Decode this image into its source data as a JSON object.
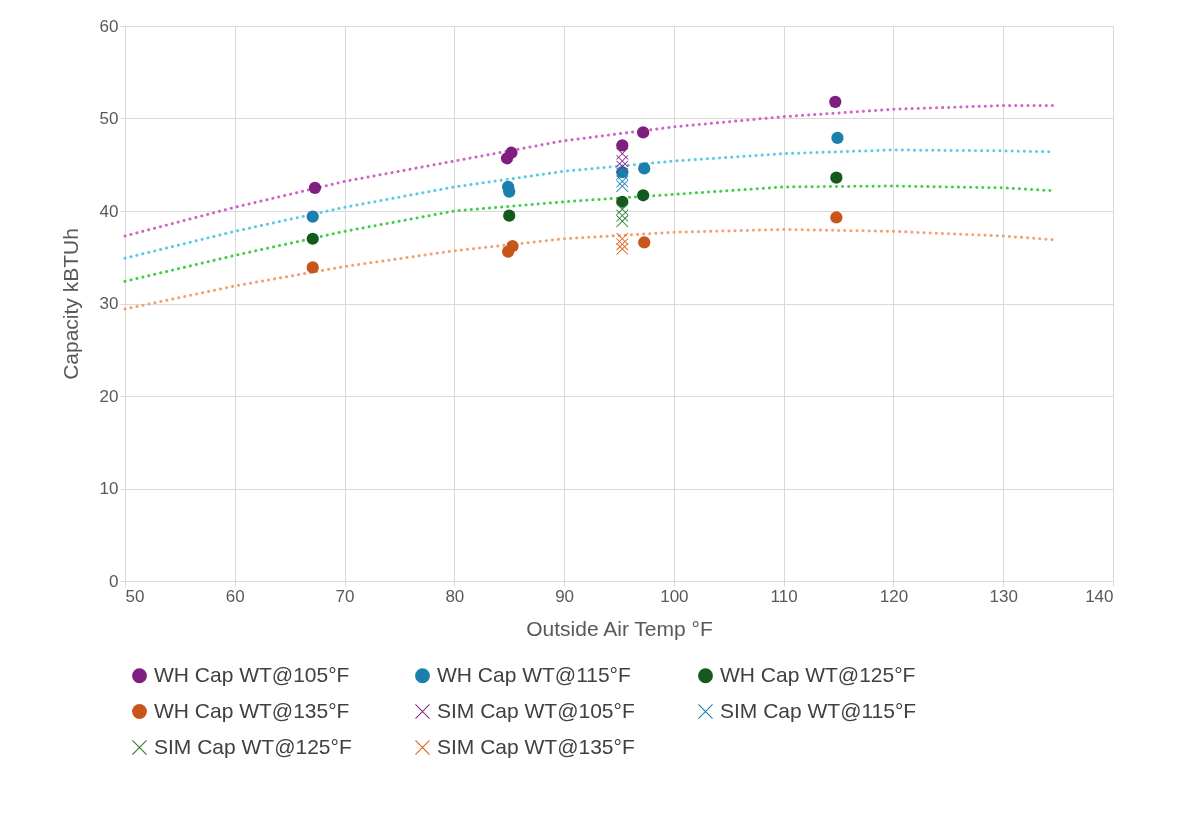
{
  "chart_data": {
    "type": "scatter",
    "xlabel": "Outside Air Temp °F",
    "ylabel": "Capacity kBTUh",
    "xlim": [
      50,
      140
    ],
    "ylim": [
      0,
      60
    ],
    "xticks": [
      50,
      60,
      70,
      80,
      90,
      100,
      110,
      120,
      130,
      140
    ],
    "yticks": [
      0,
      10,
      20,
      30,
      40,
      50,
      60
    ],
    "grid": true,
    "legend": "bottom",
    "series": [
      {
        "type": "line",
        "color": "#d062c8",
        "line_style": "dotted",
        "marker": "none",
        "x": [
          50,
          60,
          70,
          80,
          90,
          100,
          110,
          120,
          130,
          134.5
        ],
        "values": [
          37.3,
          40.4,
          43.2,
          45.4,
          47.6,
          49.1,
          50.2,
          51.0,
          51.4,
          51.4
        ]
      },
      {
        "type": "line",
        "color": "#5bc8e8",
        "line_style": "dotted",
        "marker": "none",
        "x": [
          50,
          60,
          70,
          80,
          90,
          100,
          110,
          120,
          130,
          134.5
        ],
        "values": [
          34.9,
          37.8,
          40.4,
          42.6,
          44.3,
          45.4,
          46.2,
          46.6,
          46.5,
          46.4
        ]
      },
      {
        "type": "line",
        "color": "#3ecf4a",
        "line_style": "dotted",
        "marker": "none",
        "x": [
          50,
          60,
          70,
          80,
          90,
          100,
          110,
          120,
          130,
          134.5
        ],
        "values": [
          32.4,
          35.2,
          37.8,
          40.0,
          41.0,
          41.8,
          42.6,
          42.7,
          42.5,
          42.2
        ]
      },
      {
        "type": "line",
        "color": "#f2a070",
        "line_style": "dotted",
        "marker": "none",
        "x": [
          50,
          60,
          70,
          80,
          90,
          100,
          110,
          120,
          130,
          134.5
        ],
        "values": [
          29.4,
          31.9,
          34.0,
          35.7,
          37.0,
          37.7,
          38.0,
          37.8,
          37.3,
          36.9
        ]
      },
      {
        "name": "WH Cap WT@105°F",
        "color": "#7e1e7e",
        "marker": "circle",
        "x": [
          67.3,
          84.8,
          85.2,
          95.3,
          97.2,
          114.7
        ],
        "values": [
          42.5,
          45.7,
          46.3,
          47.1,
          48.5,
          51.8
        ]
      },
      {
        "name": "WH Cap WT@115°F",
        "color": "#1a7fad",
        "marker": "circle",
        "x": [
          67.1,
          84.9,
          85.0,
          95.3,
          97.3,
          114.9
        ],
        "values": [
          39.4,
          42.6,
          42.1,
          44.2,
          44.6,
          47.9
        ]
      },
      {
        "name": "WH Cap WT@125°F",
        "color": "#145a1e",
        "marker": "circle",
        "x": [
          67.1,
          85.0,
          95.3,
          97.2,
          114.8
        ],
        "values": [
          37.0,
          39.5,
          41.0,
          41.7,
          43.6
        ]
      },
      {
        "name": "WH Cap WT@135°F",
        "color": "#c8561a",
        "marker": "circle",
        "x": [
          67.1,
          84.9,
          85.3,
          97.3,
          114.8
        ],
        "values": [
          33.9,
          35.6,
          36.2,
          36.6,
          39.3
        ]
      },
      {
        "name": "SIM Cap WT@105°F",
        "color": "#8a2a8a",
        "marker": "cross",
        "x": [
          95.3,
          95.3,
          95.3
        ],
        "values": [
          46.2,
          45.4,
          44.8
        ]
      },
      {
        "name": "SIM Cap WT@115°F",
        "color": "#1a7fad",
        "marker": "cross",
        "x": [
          95.3,
          95.3,
          95.3
        ],
        "values": [
          44.0,
          43.2,
          42.7
        ]
      },
      {
        "name": "SIM Cap WT@125°F",
        "color": "#1f7a2a",
        "marker": "cross",
        "x": [
          95.3,
          95.3,
          95.3
        ],
        "values": [
          40.2,
          39.5,
          38.9
        ]
      },
      {
        "name": "SIM Cap WT@135°F",
        "color": "#e0601a",
        "marker": "cross",
        "x": [
          95.3,
          95.3,
          95.3
        ],
        "values": [
          37.0,
          36.4,
          35.9
        ]
      }
    ]
  }
}
